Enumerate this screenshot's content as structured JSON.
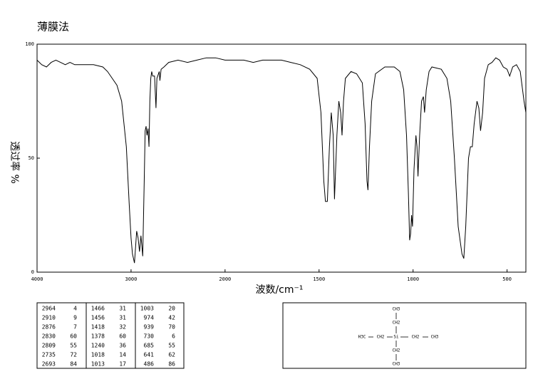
{
  "chart_data": {
    "type": "line",
    "title": "薄膜法",
    "y_label": "透过率 %",
    "x_label": "波数/cm⁻¹",
    "xlim": [
      4000,
      400
    ],
    "x_scale_break": 2000,
    "ylim": [
      0,
      100
    ],
    "xticks": [
      4000,
      3000,
      2000,
      1500,
      1000,
      500
    ],
    "yticks": [
      0,
      50,
      100
    ],
    "x": [
      4000,
      3950,
      3900,
      3850,
      3800,
      3750,
      3700,
      3650,
      3600,
      3500,
      3400,
      3300,
      3250,
      3200,
      3150,
      3100,
      3050,
      3020,
      3000,
      2985,
      2964,
      2940,
      2925,
      2910,
      2895,
      2876,
      2860,
      2850,
      2840,
      2830,
      2820,
      2809,
      2800,
      2790,
      2780,
      2770,
      2750,
      2735,
      2725,
      2700,
      2693,
      2680,
      2650,
      2600,
      2500,
      2400,
      2300,
      2200,
      2100,
      2000,
      1950,
      1900,
      1850,
      1800,
      1750,
      1700,
      1650,
      1600,
      1550,
      1510,
      1490,
      1475,
      1466,
      1456,
      1445,
      1435,
      1425,
      1418,
      1405,
      1395,
      1385,
      1378,
      1370,
      1360,
      1330,
      1300,
      1270,
      1255,
      1245,
      1240,
      1232,
      1220,
      1200,
      1150,
      1100,
      1070,
      1050,
      1035,
      1025,
      1018,
      1013,
      1008,
      1003,
      995,
      985,
      979,
      974,
      965,
      955,
      945,
      939,
      930,
      915,
      900,
      850,
      820,
      800,
      780,
      760,
      740,
      730,
      720,
      705,
      695,
      685,
      675,
      660,
      650,
      641,
      630,
      620,
      600,
      580,
      560,
      540,
      520,
      500,
      486,
      470,
      450,
      430,
      410,
      400
    ],
    "series": [
      {
        "color": "#000000",
        "values": [
          93,
          91,
          90,
          92,
          93,
          92,
          91,
          92,
          91,
          91,
          91,
          90,
          88,
          85,
          82,
          75,
          55,
          30,
          15,
          8,
          4,
          18,
          15,
          9,
          16,
          7,
          40,
          62,
          64,
          60,
          63,
          55,
          75,
          85,
          88,
          86,
          86,
          72,
          85,
          88,
          84,
          89,
          90,
          92,
          93,
          92,
          93,
          94,
          94,
          93,
          93,
          93,
          92,
          93,
          93,
          93,
          92,
          91,
          89,
          85,
          70,
          40,
          31,
          31,
          55,
          70,
          60,
          32,
          60,
          75,
          70,
          60,
          75,
          85,
          88,
          87,
          83,
          65,
          40,
          36,
          55,
          75,
          87,
          90,
          90,
          88,
          80,
          60,
          35,
          14,
          17,
          25,
          20,
          45,
          60,
          55,
          42,
          60,
          75,
          77,
          70,
          80,
          88,
          90,
          89,
          85,
          75,
          50,
          20,
          8,
          6,
          20,
          50,
          55,
          55,
          65,
          75,
          72,
          62,
          70,
          85,
          91,
          92,
          94,
          93,
          90,
          89,
          86,
          90,
          91,
          88,
          75,
          70
        ]
      }
    ],
    "peaks": [
      [
        2964,
        4
      ],
      [
        2910,
        9
      ],
      [
        2876,
        7
      ],
      [
        2830,
        60
      ],
      [
        2809,
        55
      ],
      [
        2735,
        72
      ],
      [
        2693,
        84
      ],
      [
        1466,
        31
      ],
      [
        1456,
        31
      ],
      [
        1418,
        32
      ],
      [
        1378,
        60
      ],
      [
        1240,
        36
      ],
      [
        1018,
        14
      ],
      [
        1013,
        17
      ],
      [
        1003,
        20
      ],
      [
        974,
        42
      ],
      [
        939,
        70
      ],
      [
        730,
        6
      ],
      [
        685,
        55
      ],
      [
        641,
        62
      ],
      [
        486,
        86
      ]
    ],
    "structure": {
      "labels": [
        "CH3",
        "CH2",
        "H3C",
        "CH2",
        "Si",
        "CH2",
        "CH3",
        "CH2",
        "CH3"
      ]
    }
  }
}
